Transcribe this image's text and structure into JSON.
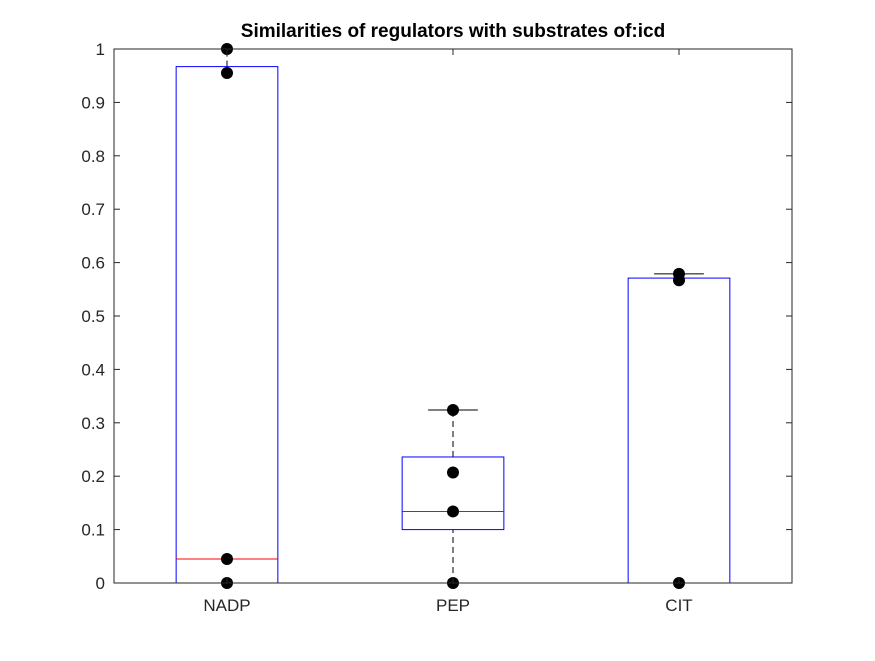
{
  "chart_data": {
    "type": "box",
    "title": "Similarities of regulators with substrates of:icd",
    "xlabel": "",
    "ylabel": "",
    "categories": [
      "NADP",
      "PEP",
      "CIT"
    ],
    "ylim": [
      0,
      1
    ],
    "yticks": [
      "0",
      "0.1",
      "0.2",
      "0.3",
      "0.4",
      "0.5",
      "0.6",
      "0.7",
      "0.8",
      "0.9",
      "1"
    ],
    "boxes": [
      {
        "category": "NADP",
        "whisker_low": 0,
        "q1": 0,
        "median": 0.045,
        "q3": 0.967,
        "whisker_high": 1,
        "points": [
          0,
          0.045,
          0.955,
          1
        ]
      },
      {
        "category": "PEP",
        "whisker_low": 0,
        "q1": 0.1,
        "median": 0.134,
        "q3": 0.236,
        "whisker_high": 0.324,
        "points": [
          0,
          0.134,
          0.207,
          0.324
        ]
      },
      {
        "category": "CIT",
        "whisker_low": 0,
        "q1": 0,
        "median": 0,
        "q3": 0.571,
        "whisker_high": 0.579,
        "points": [
          0,
          0.567,
          0.579
        ]
      }
    ],
    "grid": false,
    "colors": {
      "box": "#0000ff",
      "median": "#ff0000",
      "whisker": "#000000",
      "points": "#000000",
      "axes": "#262626"
    }
  }
}
